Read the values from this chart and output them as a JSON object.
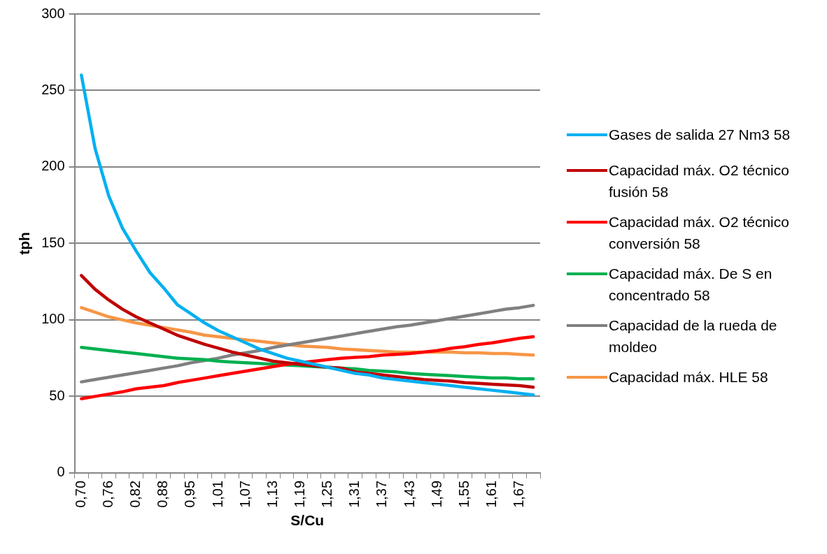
{
  "chart_data": {
    "type": "line",
    "xlabel": "S/Cu",
    "ylabel": "tph",
    "categories": [
      "0,70",
      null,
      "0,76",
      null,
      "0,82",
      null,
      "0,88",
      null,
      "0,95",
      null,
      "1,01",
      null,
      "1,07",
      null,
      "1,13",
      null,
      "1,19",
      null,
      "1,25",
      null,
      "1,31",
      null,
      "1,37",
      null,
      "1,43",
      null,
      "1,49",
      null,
      "1,55",
      null,
      "1,61",
      null,
      "1,67",
      null
    ],
    "ylim": [
      0,
      300
    ],
    "yticks": [
      0,
      50,
      100,
      150,
      200,
      250,
      300
    ],
    "grid": "y",
    "legend": "right",
    "marker": "none",
    "series": [
      {
        "name": "Gases de salida 27 Nm3 58",
        "color": "#00b0f0",
        "values": [
          260,
          212,
          181,
          160,
          145,
          131,
          121,
          110,
          104,
          98,
          93,
          89,
          85,
          81,
          78,
          75,
          73,
          71,
          69,
          67,
          65,
          64,
          62,
          61,
          60,
          59,
          58,
          57,
          56,
          55,
          54,
          53,
          52,
          51
        ]
      },
      {
        "name": "Capacidad máx. O2 técnico fusión 58",
        "color": "#c00000",
        "values": [
          129,
          120,
          113,
          107,
          102,
          98,
          94,
          90,
          87,
          84,
          81.5,
          79,
          77,
          75,
          73,
          72,
          71,
          70,
          69,
          68.5,
          66,
          65,
          64,
          63,
          62,
          61,
          60.5,
          60,
          59,
          58.5,
          58,
          57.5,
          57,
          56
        ]
      },
      {
        "name": "Capacidad máx. O2 técnico conversión 58",
        "color": "#ff0000",
        "values": [
          48.5,
          50,
          51.5,
          53,
          55,
          56,
          57,
          59,
          60.5,
          62,
          63.5,
          65,
          66.5,
          68,
          69.5,
          71,
          72,
          73,
          74,
          75,
          75.5,
          76,
          77,
          77.5,
          78,
          79,
          80,
          81.5,
          82.5,
          84,
          85,
          86.5,
          88,
          89
        ]
      },
      {
        "name": "Capacidad máx. De S en concentrado 58",
        "color": "#00b050",
        "values": [
          82,
          81,
          80,
          79,
          78,
          77,
          76,
          75,
          74.5,
          74,
          73,
          72.5,
          72,
          71.5,
          71,
          70.5,
          70,
          69.5,
          69,
          68.5,
          68,
          67,
          66.5,
          66,
          65,
          64.5,
          64,
          63.5,
          63,
          62.5,
          62,
          62,
          61.5,
          61.5
        ]
      },
      {
        "name": "Capacidad de la rueda de moldeo",
        "color": "#808080",
        "values": [
          59.5,
          61,
          62.5,
          64,
          65.5,
          67,
          68.5,
          70,
          72,
          73.5,
          75,
          77,
          78.5,
          80,
          82,
          83.5,
          85,
          86.5,
          88,
          89.5,
          91,
          92.5,
          94,
          95.5,
          96.5,
          98,
          99.5,
          101,
          102.5,
          104,
          105.5,
          107,
          108,
          109.5
        ]
      },
      {
        "name": "Capacidad máx. HLE 58",
        "color": "#f79646",
        "values": [
          108,
          105,
          102,
          100,
          98,
          96.5,
          95,
          93.5,
          92,
          90,
          89,
          88,
          87,
          86,
          85,
          84,
          83,
          82.5,
          82,
          81,
          80.5,
          80,
          79.5,
          79,
          79,
          79,
          79,
          79,
          78.5,
          78.5,
          78,
          78,
          77.5,
          77
        ]
      }
    ]
  }
}
